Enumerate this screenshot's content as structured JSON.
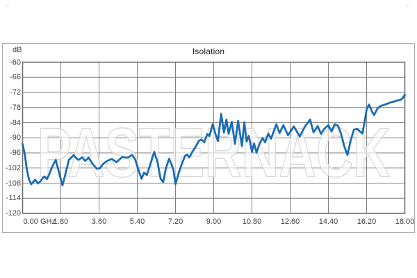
{
  "chart": {
    "title": "Isolation",
    "y_unit": "dB",
    "watermark": "PASTERNACK",
    "colors": {
      "line": "#1a6cb5",
      "grid": "#7f7f7f",
      "plot_border": "#6e6e6e",
      "frame_border": "#ababab",
      "tick_text": "#3f3f3f",
      "watermark_stroke": "#d9d9d9",
      "watermark_fill": "rgba(255,255,255,0.6)"
    },
    "x_tick_labels": [
      "0.00 GHz",
      "1.80",
      "3.60",
      "5.40",
      "7.20",
      "9.00",
      "10.80",
      "12.60",
      "14.40",
      "16.20",
      "18.00"
    ],
    "y_tick_labels": [
      "-60",
      "-66",
      "-72",
      "-78",
      "-84",
      "-90",
      "-96",
      "-102",
      "-108",
      "-114",
      "-120"
    ]
  },
  "chart_data": {
    "type": "line",
    "title": "Isolation",
    "xlabel": "GHz",
    "ylabel": "dB",
    "xlim": [
      0,
      18
    ],
    "ylim": [
      -120,
      -60
    ],
    "x_tick_step": 1.8,
    "y_tick_step": 6,
    "grid": true,
    "legend": "none",
    "series": [
      {
        "name": "Isolation",
        "x": [
          0.0,
          0.1,
          0.2,
          0.3,
          0.41,
          0.5,
          0.59,
          0.66,
          0.73,
          0.85,
          0.95,
          1.03,
          1.15,
          1.26,
          1.4,
          1.56,
          1.68,
          1.8,
          1.88,
          2.0,
          2.18,
          2.4,
          2.55,
          2.63,
          2.8,
          2.95,
          3.11,
          3.3,
          3.5,
          3.65,
          3.8,
          3.98,
          4.2,
          4.42,
          4.6,
          4.7,
          4.86,
          5.0,
          5.15,
          5.3,
          5.45,
          5.6,
          5.72,
          5.85,
          6.0,
          6.2,
          6.35,
          6.5,
          6.62,
          6.75,
          6.9,
          7.0,
          7.1,
          7.2,
          7.35,
          7.5,
          7.65,
          7.75,
          7.85,
          8.0,
          8.15,
          8.3,
          8.42,
          8.55,
          8.7,
          8.8,
          8.95,
          9.1,
          9.2,
          9.35,
          9.48,
          9.6,
          9.7,
          9.85,
          10.0,
          10.15,
          10.33,
          10.44,
          10.55,
          10.65,
          10.8,
          10.9,
          11.02,
          11.15,
          11.3,
          11.42,
          11.57,
          11.7,
          11.95,
          12.1,
          12.28,
          12.5,
          12.77,
          13.05,
          13.3,
          13.54,
          13.7,
          13.9,
          14.05,
          14.2,
          14.4,
          14.55,
          14.7,
          14.85,
          15.0,
          15.15,
          15.3,
          15.45,
          15.6,
          15.75,
          15.9,
          16.0,
          16.1,
          16.2,
          16.31,
          16.45,
          16.55,
          16.7,
          16.85,
          17.0,
          17.2,
          17.35,
          17.5,
          17.65,
          17.8,
          17.9,
          18.0
        ],
        "y": [
          -92.5,
          -96.5,
          -102.5,
          -106.5,
          -108.4,
          -107.6,
          -106.6,
          -107.4,
          -108.1,
          -107.2,
          -106.0,
          -105.4,
          -106.4,
          -104.4,
          -101.4,
          -98.8,
          -102.5,
          -106.5,
          -108.9,
          -105.0,
          -98.8,
          -96.9,
          -98.2,
          -98.8,
          -97.8,
          -99.2,
          -97.9,
          -100.4,
          -102.3,
          -102.0,
          -100.3,
          -99.2,
          -98.4,
          -99.7,
          -98.3,
          -97.6,
          -97.9,
          -97.7,
          -96.8,
          -98.5,
          -102.5,
          -106.3,
          -103.8,
          -104.8,
          -101.0,
          -95.6,
          -99.5,
          -106.3,
          -107.6,
          -102.0,
          -98.3,
          -100.3,
          -102.5,
          -108.4,
          -104.0,
          -100.3,
          -97.2,
          -96.7,
          -97.8,
          -95.5,
          -93.6,
          -91.2,
          -90.7,
          -91.8,
          -88.5,
          -89.3,
          -84.6,
          -89.0,
          -91.3,
          -80.5,
          -88.0,
          -82.8,
          -88.4,
          -83.7,
          -92.4,
          -83.3,
          -93.3,
          -83.8,
          -91.5,
          -89.2,
          -95.6,
          -92.3,
          -95.9,
          -92.5,
          -90.1,
          -91.8,
          -88.3,
          -90.4,
          -84.6,
          -88.1,
          -85.0,
          -89.0,
          -85.5,
          -89.5,
          -85.5,
          -82.8,
          -87.8,
          -85.4,
          -88.4,
          -86.5,
          -85.0,
          -87.5,
          -84.6,
          -85.2,
          -88.5,
          -93.5,
          -96.8,
          -91.0,
          -86.8,
          -86.4,
          -87.6,
          -88.3,
          -84.0,
          -78.8,
          -76.8,
          -79.5,
          -81.0,
          -78.5,
          -77.4,
          -77.0,
          -76.4,
          -75.9,
          -75.6,
          -75.2,
          -74.9,
          -74.3,
          -72.9
        ]
      }
    ]
  }
}
